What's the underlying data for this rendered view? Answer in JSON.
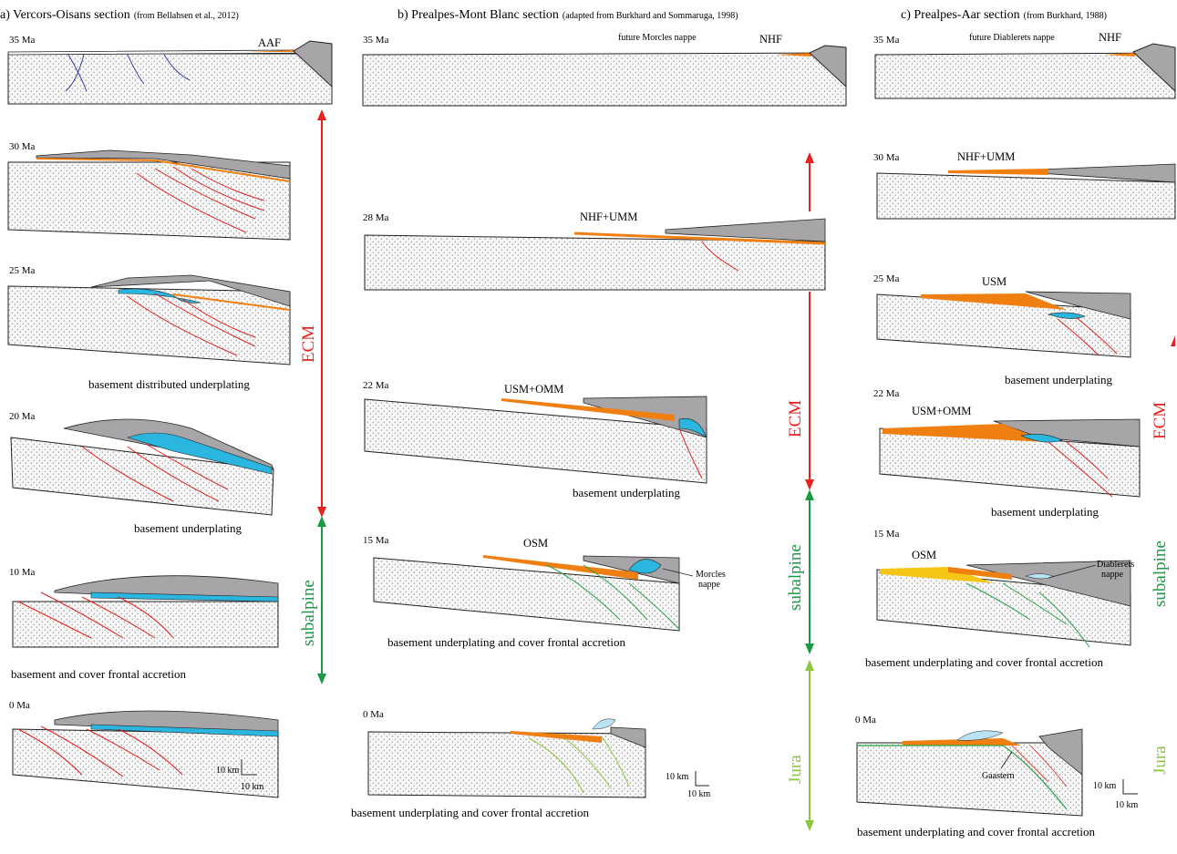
{
  "columns": [
    {
      "title": "a) Vercors-Oisans section",
      "source": "(from Bellahsen et al., 2012)",
      "stages": [
        {
          "age": "35 Ma",
          "labels": [
            "AAF"
          ],
          "caption": ""
        },
        {
          "age": "30 Ma",
          "labels": [],
          "caption": ""
        },
        {
          "age": "25 Ma",
          "labels": [],
          "caption": "basement distributed underplating"
        },
        {
          "age": "20 Ma",
          "labels": [],
          "caption": "basement underplating"
        },
        {
          "age": "10 Ma",
          "labels": [],
          "caption": "basement and cover frontal accretion"
        },
        {
          "age": "0 Ma",
          "labels": [],
          "caption": ""
        }
      ],
      "scale": {
        "vertical": "10 km",
        "horizontal": "10 km"
      }
    },
    {
      "title": "b) Prealpes-Mont Blanc section",
      "source": "(adapted from Burkhard and Sommaruga, 1998)",
      "stages": [
        {
          "age": "35 Ma",
          "labels": [
            "future Morcles nappe",
            "NHF"
          ],
          "caption": ""
        },
        {
          "age": "28 Ma",
          "labels": [
            "NHF+UMM"
          ],
          "caption": ""
        },
        {
          "age": "22 Ma",
          "labels": [
            "USM+OMM"
          ],
          "caption": "basement underplating"
        },
        {
          "age": "15 Ma",
          "labels": [
            "OSM",
            "Morcles",
            "nappe"
          ],
          "caption": "basement underplating and cover frontal accretion"
        },
        {
          "age": "0 Ma",
          "labels": [],
          "caption": "basement underplating and cover frontal accretion"
        }
      ],
      "scale": {
        "vertical": "10 km",
        "horizontal": "10 km"
      }
    },
    {
      "title": "c) Prealpes-Aar section",
      "source": "(from Burkhard, 1988)",
      "stages": [
        {
          "age": "35 Ma",
          "labels": [
            "future Diablerets nappe",
            "NHF"
          ],
          "caption": ""
        },
        {
          "age": "30 Ma",
          "labels": [
            "NHF+UMM"
          ],
          "caption": ""
        },
        {
          "age": "25 Ma",
          "labels": [
            "USM"
          ],
          "caption": "basement underplating"
        },
        {
          "age": "22 Ma",
          "labels": [
            "USM+OMM"
          ],
          "caption": "basement underplating"
        },
        {
          "age": "15 Ma",
          "labels": [
            "OSM",
            "Diablerets",
            "nappe"
          ],
          "caption": "basement underplating and cover frontal accretion"
        },
        {
          "age": "0 Ma",
          "labels": [
            "Gaastern"
          ],
          "caption": "basement underplating and cover frontal accretion"
        }
      ],
      "scale": {
        "vertical": "10 km",
        "horizontal": "10 km"
      }
    }
  ],
  "phases": {
    "ecm": "ECM",
    "subalpine": "subalpine",
    "jura": "Jura"
  },
  "colors": {
    "ecm": "#e8231f",
    "subalpine": "#1a9a45",
    "jura": "#8dc63f",
    "basement": "#f4f4f4",
    "molasse": "#f07f12",
    "nappe_blue": "#2bb6e0",
    "light_blue": "#b9e3f4",
    "upper_plate": "#a7a5a8",
    "fault_red": "#e32020",
    "fault_green": "#2aa24a",
    "fault_light_green": "#8dc63f"
  }
}
